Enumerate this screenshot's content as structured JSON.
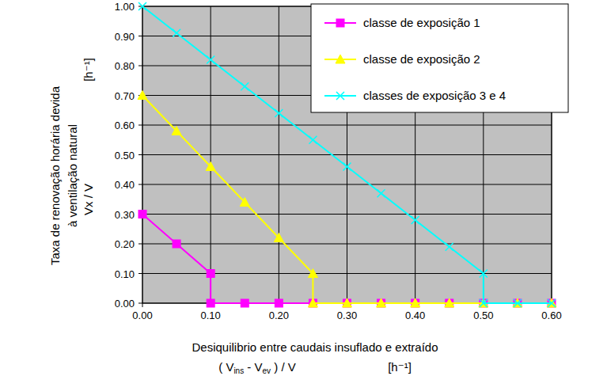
{
  "chart_data": {
    "type": "line",
    "y_label": [
      "Taxa de renovação horária devida",
      "à ventilação natural"
    ],
    "y_symbol": "Vx / V",
    "y_unit": "[h⁻¹]",
    "x_label": "Desiquilibrio entre caudais insuflado e extraído",
    "x_formula": [
      "( V",
      "ins",
      " - V",
      "ev",
      " ) / V"
    ],
    "x_unit": "[h⁻¹]",
    "xlim": [
      0,
      0.6
    ],
    "ylim": [
      0,
      1
    ],
    "xticks": [
      {
        "value": 0,
        "label": "0.00"
      },
      {
        "value": 0.1,
        "label": "0.10"
      },
      {
        "value": 0.2,
        "label": "0.20"
      },
      {
        "value": 0.3,
        "label": "0.30"
      },
      {
        "value": 0.4,
        "label": "0.40"
      },
      {
        "value": 0.5,
        "label": "0.50"
      },
      {
        "value": 0.6,
        "label": "0.60"
      }
    ],
    "yticks": [
      {
        "value": 0,
        "label": "0.00"
      },
      {
        "value": 0.1,
        "label": "0.10"
      },
      {
        "value": 0.2,
        "label": "0.20"
      },
      {
        "value": 0.3,
        "label": "0.30"
      },
      {
        "value": 0.4,
        "label": "0.40"
      },
      {
        "value": 0.5,
        "label": "0.50"
      },
      {
        "value": 0.6,
        "label": "0.60"
      },
      {
        "value": 0.7,
        "label": "0.70"
      },
      {
        "value": 0.8,
        "label": "0.80"
      },
      {
        "value": 0.9,
        "label": "0.90"
      },
      {
        "value": 1,
        "label": "1.00"
      }
    ],
    "grid": true,
    "legend": "upper right",
    "series": [
      {
        "name": "classe de exposição 1",
        "color": "#ff00ff",
        "marker": "square",
        "line_style": "solid",
        "x": [
          0,
          0.05,
          0.1,
          0.1,
          0.15,
          0.2,
          0.25,
          0.3,
          0.35,
          0.4,
          0.45,
          0.5,
          0.55,
          0.6
        ],
        "values": [
          0.3,
          0.2,
          0.1,
          0,
          0,
          0,
          0,
          0,
          0,
          0,
          0,
          0,
          0,
          0
        ]
      },
      {
        "name": "classe de exposição 2",
        "color": "#ffff00",
        "marker": "triangle",
        "line_style": "solid",
        "x": [
          0,
          0.05,
          0.1,
          0.15,
          0.2,
          0.25,
          0.25,
          0.3,
          0.35,
          0.4,
          0.45,
          0.5,
          0.55,
          0.6
        ],
        "values": [
          0.7,
          0.58,
          0.46,
          0.34,
          0.22,
          0.1,
          0,
          0,
          0,
          0,
          0,
          0,
          0,
          0
        ]
      },
      {
        "name": "classes de exposição 3 e 4",
        "color": "#00ffff",
        "marker": "x",
        "line_style": "solid",
        "x": [
          0,
          0.05,
          0.1,
          0.15,
          0.2,
          0.25,
          0.3,
          0.35,
          0.4,
          0.45,
          0.5,
          0.5,
          0.55,
          0.6
        ],
        "values": [
          1,
          0.91,
          0.82,
          0.73,
          0.64,
          0.55,
          0.46,
          0.37,
          0.28,
          0.19,
          0.1,
          0,
          0,
          0
        ]
      }
    ]
  }
}
